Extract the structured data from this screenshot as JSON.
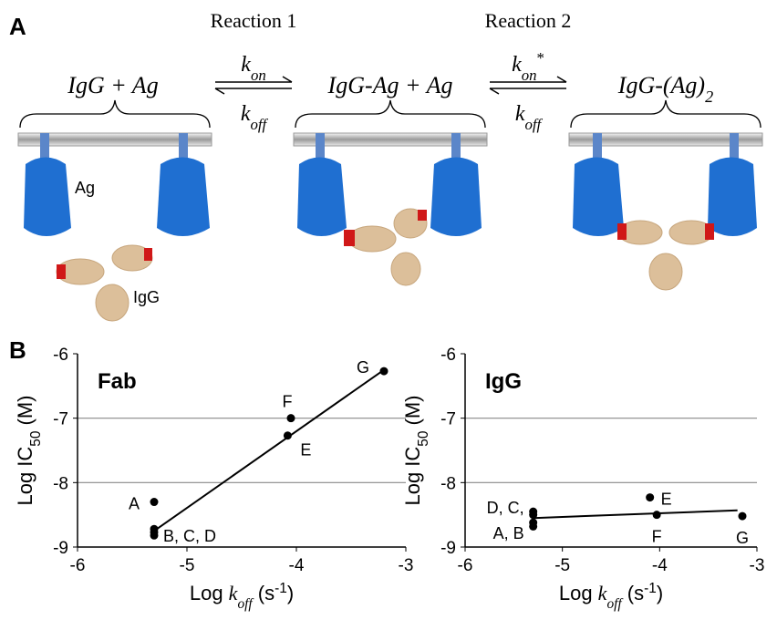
{
  "panel_labels": [
    "A",
    "B"
  ],
  "diagram": {
    "reactions": [
      {
        "label": "Reaction 1",
        "forward": [
          "k",
          "on"
        ],
        "reverse": [
          "k",
          "off"
        ]
      },
      {
        "label": "Reaction 2",
        "forward": [
          "k",
          "on",
          "*"
        ],
        "reverse": [
          "k",
          "off"
        ]
      }
    ],
    "species": [
      [
        "IgG + Ag"
      ],
      [
        "IgG-Ag + Ag"
      ],
      [
        "IgG-(Ag)",
        "2"
      ]
    ],
    "labels": [
      "Ag",
      "IgG"
    ]
  },
  "chart_data": [
    {
      "type": "scatter",
      "title": "Fab",
      "xlabel": [
        "Log ",
        "k",
        "off",
        " (s",
        "-1",
        ")"
      ],
      "ylabel": [
        "Log IC",
        "50",
        " (M)"
      ],
      "xlim": [
        -6,
        -3
      ],
      "xticks": [
        -6,
        -5,
        -4,
        -3
      ],
      "ylim": [
        -9,
        -6
      ],
      "yticks": [
        -9,
        -8,
        -7,
        -6
      ],
      "grid": true,
      "series": [
        {
          "type": "scatter",
          "color": "#000000",
          "x": [
            -5.3,
            -5.3,
            -5.3,
            -5.3,
            -4.08,
            -4.05,
            -3.2
          ],
          "y": [
            -8.3,
            -8.72,
            -8.77,
            -8.82,
            -7.27,
            -7.0,
            -6.27
          ],
          "point_labels": [
            "A",
            "B, C, D",
            null,
            null,
            "E",
            "F",
            "G"
          ]
        },
        {
          "type": "line",
          "color": "#000000",
          "x": [
            -5.3,
            -3.2
          ],
          "y": [
            -8.75,
            -6.25
          ]
        }
      ]
    },
    {
      "type": "scatter",
      "title": "IgG",
      "xlabel": [
        "Log ",
        "k",
        "off",
        " (s",
        "-1",
        ")"
      ],
      "ylabel": [
        "Log IC",
        "50",
        " (M)"
      ],
      "xlim": [
        -6,
        -3
      ],
      "xticks": [
        -6,
        -5,
        -4,
        -3
      ],
      "ylim": [
        -9,
        -6
      ],
      "yticks": [
        -9,
        -8,
        -7,
        -6
      ],
      "grid": true,
      "series": [
        {
          "type": "scatter",
          "color": "#000000",
          "x": [
            -5.3,
            -5.3,
            -5.3,
            -5.3,
            -4.1,
            -4.03,
            -3.15
          ],
          "y": [
            -8.45,
            -8.5,
            -8.62,
            -8.68,
            -8.23,
            -8.5,
            -8.52
          ],
          "point_labels": [
            "D, C,",
            null,
            "A, B",
            null,
            "E",
            "F",
            "G"
          ]
        },
        {
          "type": "line",
          "color": "#000000",
          "x": [
            -5.3,
            -3.2
          ],
          "y": [
            -8.55,
            -8.43
          ]
        }
      ]
    }
  ]
}
